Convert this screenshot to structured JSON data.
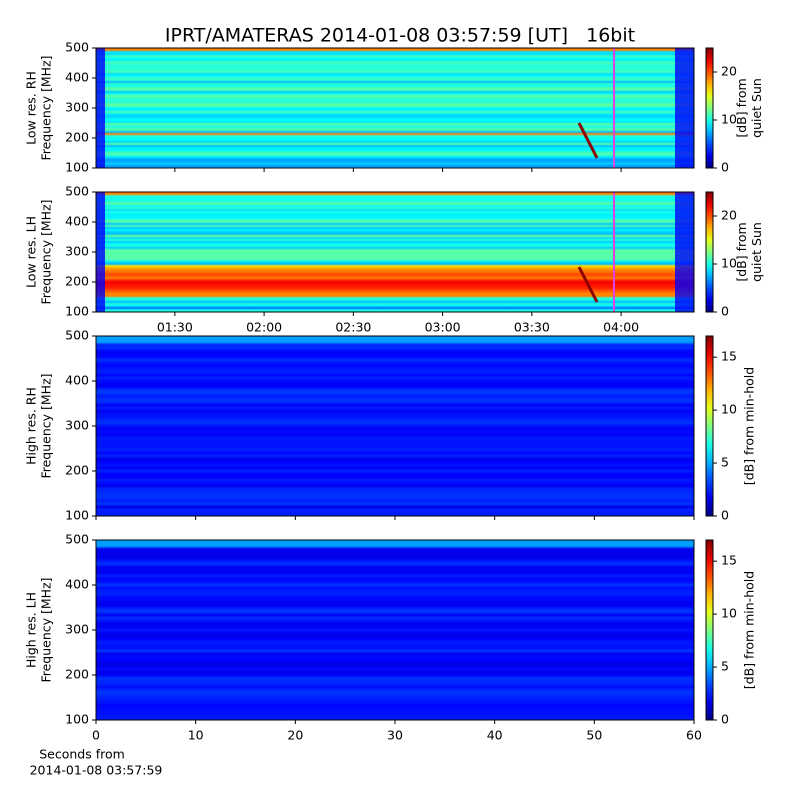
{
  "chart_data": [
    {
      "type": "heatmap",
      "title": "IPRT/AMATERAS 2014-01-08 03:57:59 [UT]   16bit",
      "ylabel": [
        "Low res. RH",
        "Frequency [MHz]"
      ],
      "ylim": [
        100,
        500
      ],
      "yticks": [
        100,
        200,
        300,
        400,
        500
      ],
      "xlim": [
        63.5,
        264.5
      ],
      "colorbar_label": [
        "[dB] from",
        "quiet Sun"
      ],
      "clim": [
        0,
        25
      ],
      "cticks": [
        0,
        10,
        20
      ],
      "colormap": "jet"
    },
    {
      "type": "heatmap",
      "ylabel": [
        "Low res. LH",
        "Frequency [MHz]"
      ],
      "ylim": [
        100,
        500
      ],
      "yticks": [
        100,
        200,
        300,
        400,
        500
      ],
      "xlim": [
        63.5,
        264.5
      ],
      "xticks": [
        {
          "value": 90,
          "label": "01:30"
        },
        {
          "value": 120,
          "label": "02:00"
        },
        {
          "value": 150,
          "label": "02:30"
        },
        {
          "value": 180,
          "label": "03:00"
        },
        {
          "value": 210,
          "label": "03:30"
        },
        {
          "value": 240,
          "label": "04:00"
        }
      ],
      "colorbar_label": [
        "[dB] from",
        "quiet Sun"
      ],
      "clim": [
        0,
        25
      ],
      "cticks": [
        0,
        10,
        20
      ],
      "colormap": "jet"
    },
    {
      "type": "heatmap",
      "ylabel": [
        "High res. RH",
        "Frequency [MHz]"
      ],
      "ylim": [
        100,
        500
      ],
      "yticks": [
        100,
        200,
        300,
        400,
        500
      ],
      "xlim": [
        0,
        60
      ],
      "colorbar_label": [
        "[dB] from min-hold"
      ],
      "clim": [
        0,
        17
      ],
      "cticks": [
        0,
        5,
        10,
        15
      ],
      "colormap": "jet"
    },
    {
      "type": "heatmap",
      "ylabel": [
        "High res. LH",
        "Frequency [MHz]"
      ],
      "ylim": [
        100,
        500
      ],
      "yticks": [
        100,
        200,
        300,
        400,
        500
      ],
      "xlim": [
        0,
        60
      ],
      "xticks": [
        0,
        10,
        20,
        30,
        40,
        50,
        60
      ],
      "xlabel": [
        "Seconds from",
        "2014-01-08 03:57:59"
      ],
      "colorbar_label": [
        "[dB] from min-hold"
      ],
      "clim": [
        0,
        17
      ],
      "cticks": [
        0,
        5,
        10,
        15
      ],
      "colormap": "jet"
    }
  ]
}
